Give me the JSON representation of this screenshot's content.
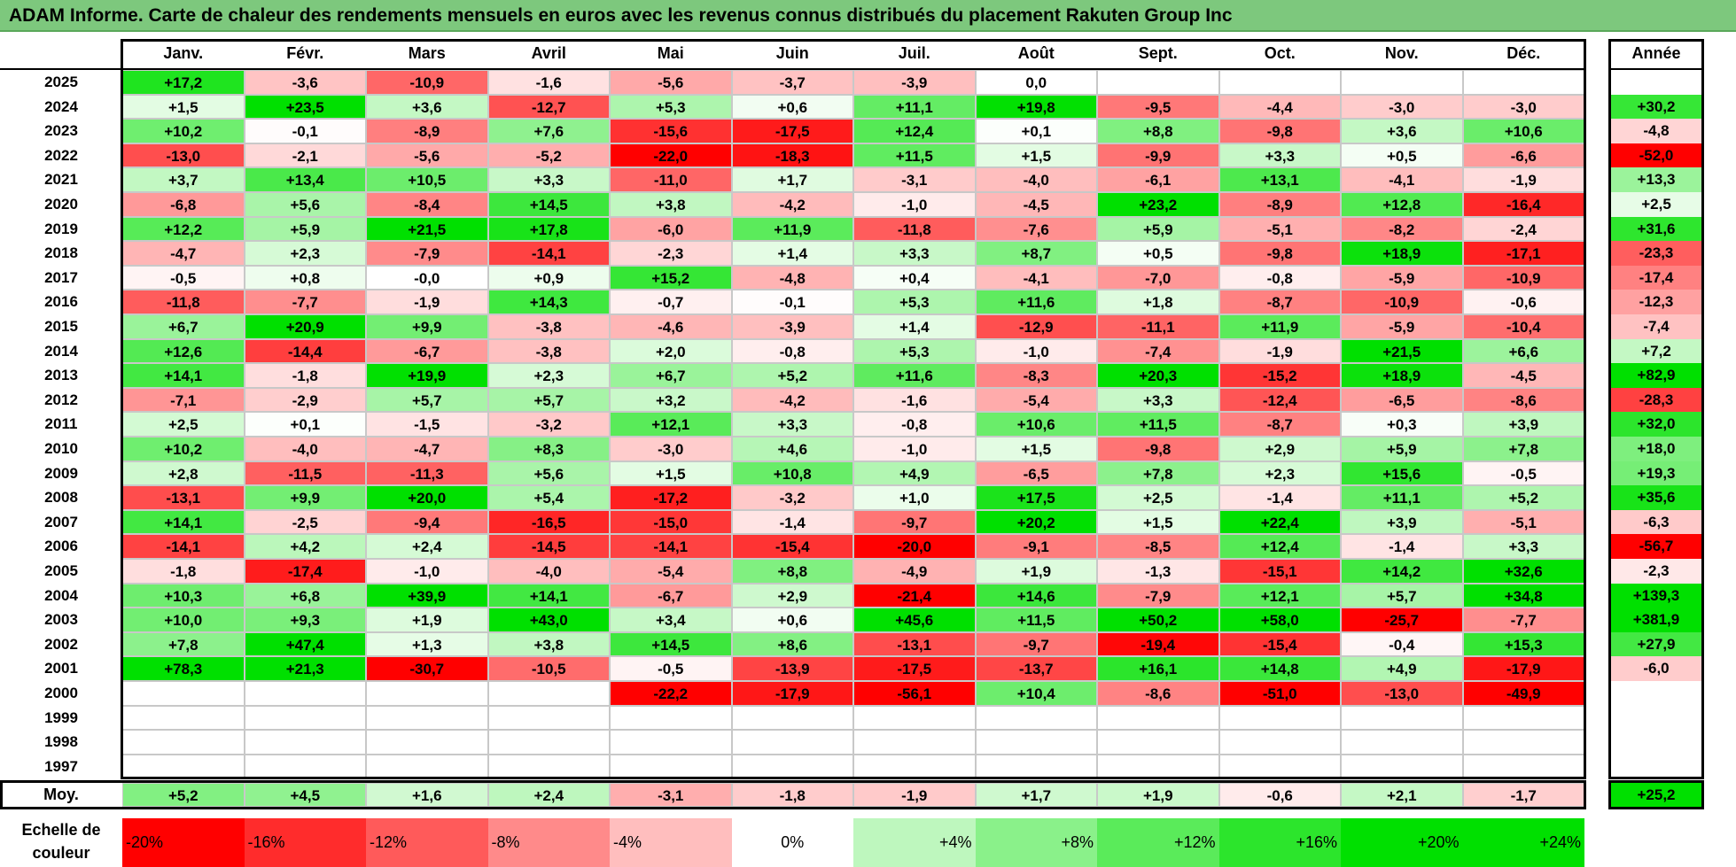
{
  "chart_data": {
    "type": "heatmap",
    "title": "ADAM Informe. Carte de chaleur des rendements mensuels en euros avec les revenus connus distribués du placement Rakuten Group Inc",
    "months": [
      "Janv.",
      "Févr.",
      "Mars",
      "Avril",
      "Mai",
      "Juin",
      "Juil.",
      "Août",
      "Sept.",
      "Oct.",
      "Nov.",
      "Déc."
    ],
    "year_column_label": "Année",
    "average_row_label": "Moy.",
    "rows": [
      {
        "year": "2025",
        "values": [
          "+17,2",
          "-3,6",
          "-10,9",
          "-1,6",
          "-5,6",
          "-3,7",
          "-3,9",
          "0,0",
          "",
          "",
          "",
          ""
        ],
        "annual": ""
      },
      {
        "year": "2024",
        "values": [
          "+1,5",
          "+23,5",
          "+3,6",
          "-12,7",
          "+5,3",
          "+0,6",
          "+11,1",
          "+19,8",
          "-9,5",
          "-4,4",
          "-3,0",
          "-3,0"
        ],
        "annual": "+30,2"
      },
      {
        "year": "2023",
        "values": [
          "+10,2",
          "-0,1",
          "-8,9",
          "+7,6",
          "-15,6",
          "-17,5",
          "+12,4",
          "+0,1",
          "+8,8",
          "-9,8",
          "+3,6",
          "+10,6"
        ],
        "annual": "-4,8"
      },
      {
        "year": "2022",
        "values": [
          "-13,0",
          "-2,1",
          "-5,6",
          "-5,2",
          "-22,0",
          "-18,3",
          "+11,5",
          "+1,5",
          "-9,9",
          "+3,3",
          "+0,5",
          "-6,6"
        ],
        "annual": "-52,0"
      },
      {
        "year": "2021",
        "values": [
          "+3,7",
          "+13,4",
          "+10,5",
          "+3,3",
          "-11,0",
          "+1,7",
          "-3,1",
          "-4,0",
          "-6,1",
          "+13,1",
          "-4,1",
          "-1,9"
        ],
        "annual": "+13,3"
      },
      {
        "year": "2020",
        "values": [
          "-6,8",
          "+5,6",
          "-8,4",
          "+14,5",
          "+3,8",
          "-4,2",
          "-1,0",
          "-4,5",
          "+23,2",
          "-8,9",
          "+12,8",
          "-16,4"
        ],
        "annual": "+2,5"
      },
      {
        "year": "2019",
        "values": [
          "+12,2",
          "+5,9",
          "+21,5",
          "+17,8",
          "-6,0",
          "+11,9",
          "-11,8",
          "-7,6",
          "+5,9",
          "-5,1",
          "-8,2",
          "-2,4"
        ],
        "annual": "+31,6"
      },
      {
        "year": "2018",
        "values": [
          "-4,7",
          "+2,3",
          "-7,9",
          "-14,1",
          "-2,3",
          "+1,4",
          "+3,3",
          "+8,7",
          "+0,5",
          "-9,8",
          "+18,9",
          "-17,1"
        ],
        "annual": "-23,3"
      },
      {
        "year": "2017",
        "values": [
          "-0,5",
          "+0,8",
          "-0,0",
          "+0,9",
          "+15,2",
          "-4,8",
          "+0,4",
          "-4,1",
          "-7,0",
          "-0,8",
          "-5,9",
          "-10,9"
        ],
        "annual": "-17,4"
      },
      {
        "year": "2016",
        "values": [
          "-11,8",
          "-7,7",
          "-1,9",
          "+14,3",
          "-0,7",
          "-0,1",
          "+5,3",
          "+11,6",
          "+1,8",
          "-8,7",
          "-10,9",
          "-0,6"
        ],
        "annual": "-12,3"
      },
      {
        "year": "2015",
        "values": [
          "+6,7",
          "+20,9",
          "+9,9",
          "-3,8",
          "-4,6",
          "-3,9",
          "+1,4",
          "-12,9",
          "-11,1",
          "+11,9",
          "-5,9",
          "-10,4"
        ],
        "annual": "-7,4"
      },
      {
        "year": "2014",
        "values": [
          "+12,6",
          "-14,4",
          "-6,7",
          "-3,8",
          "+2,0",
          "-0,8",
          "+5,3",
          "-1,0",
          "-7,4",
          "-1,9",
          "+21,5",
          "+6,6"
        ],
        "annual": "+7,2"
      },
      {
        "year": "2013",
        "values": [
          "+14,1",
          "-1,8",
          "+19,9",
          "+2,3",
          "+6,7",
          "+5,2",
          "+11,6",
          "-8,3",
          "+20,3",
          "-15,2",
          "+18,9",
          "-4,5"
        ],
        "annual": "+82,9"
      },
      {
        "year": "2012",
        "values": [
          "-7,1",
          "-2,9",
          "+5,7",
          "+5,7",
          "+3,2",
          "-4,2",
          "-1,6",
          "-5,4",
          "+3,3",
          "-12,4",
          "-6,5",
          "-8,6"
        ],
        "annual": "-28,3"
      },
      {
        "year": "2011",
        "values": [
          "+2,5",
          "+0,1",
          "-1,5",
          "-3,2",
          "+12,1",
          "+3,3",
          "-0,8",
          "+10,6",
          "+11,5",
          "-8,7",
          "+0,3",
          "+3,9"
        ],
        "annual": "+32,0"
      },
      {
        "year": "2010",
        "values": [
          "+10,2",
          "-4,0",
          "-4,7",
          "+8,3",
          "-3,0",
          "+4,6",
          "-1,0",
          "+1,5",
          "-9,8",
          "+2,9",
          "+5,9",
          "+7,8"
        ],
        "annual": "+18,0"
      },
      {
        "year": "2009",
        "values": [
          "+2,8",
          "-11,5",
          "-11,3",
          "+5,6",
          "+1,5",
          "+10,8",
          "+4,9",
          "-6,5",
          "+7,8",
          "+2,3",
          "+15,6",
          "-0,5"
        ],
        "annual": "+19,3"
      },
      {
        "year": "2008",
        "values": [
          "-13,1",
          "+9,9",
          "+20,0",
          "+5,4",
          "-17,2",
          "-3,2",
          "+1,0",
          "+17,5",
          "+2,5",
          "-1,4",
          "+11,1",
          "+5,2"
        ],
        "annual": "+35,6"
      },
      {
        "year": "2007",
        "values": [
          "+14,1",
          "-2,5",
          "-9,4",
          "-16,5",
          "-15,0",
          "-1,4",
          "-9,7",
          "+20,2",
          "+1,5",
          "+22,4",
          "+3,9",
          "-5,1"
        ],
        "annual": "-6,3"
      },
      {
        "year": "2006",
        "values": [
          "-14,1",
          "+4,2",
          "+2,4",
          "-14,5",
          "-14,1",
          "-15,4",
          "-20,0",
          "-9,1",
          "-8,5",
          "+12,4",
          "-1,4",
          "+3,3"
        ],
        "annual": "-56,7"
      },
      {
        "year": "2005",
        "values": [
          "-1,8",
          "-17,4",
          "-1,0",
          "-4,0",
          "-5,4",
          "+8,8",
          "-4,9",
          "+1,9",
          "-1,3",
          "-15,1",
          "+14,2",
          "+32,6"
        ],
        "annual": "-2,3"
      },
      {
        "year": "2004",
        "values": [
          "+10,3",
          "+6,8",
          "+39,9",
          "+14,1",
          "-6,7",
          "+2,9",
          "-21,4",
          "+14,6",
          "-7,9",
          "+12,1",
          "+5,7",
          "+34,8"
        ],
        "annual": "+139,3"
      },
      {
        "year": "2003",
        "values": [
          "+10,0",
          "+9,3",
          "+1,9",
          "+43,0",
          "+3,4",
          "+0,6",
          "+45,6",
          "+11,5",
          "+50,2",
          "+58,0",
          "-25,7",
          "-7,7"
        ],
        "annual": "+381,9"
      },
      {
        "year": "2002",
        "values": [
          "+7,8",
          "+47,4",
          "+1,3",
          "+3,8",
          "+14,5",
          "+8,6",
          "-13,1",
          "-9,7",
          "-19,4",
          "-15,4",
          "-0,4",
          "+15,3"
        ],
        "annual": "+27,9"
      },
      {
        "year": "2001",
        "values": [
          "+78,3",
          "+21,3",
          "-30,7",
          "-10,5",
          "-0,5",
          "-13,9",
          "-17,5",
          "-13,7",
          "+16,1",
          "+14,8",
          "+4,9",
          "-17,9"
        ],
        "annual": "-6,0"
      },
      {
        "year": "2000",
        "values": [
          "",
          "",
          "",
          "",
          "-22,2",
          "-17,9",
          "-56,1",
          "+10,4",
          "-8,6",
          "-51,0",
          "-13,0",
          "-49,9"
        ],
        "annual": ""
      },
      {
        "year": "1999",
        "values": [
          "",
          "",
          "",
          "",
          "",
          "",
          "",
          "",
          "",
          "",
          "",
          ""
        ],
        "annual": ""
      },
      {
        "year": "1998",
        "values": [
          "",
          "",
          "",
          "",
          "",
          "",
          "",
          "",
          "",
          "",
          "",
          ""
        ],
        "annual": ""
      },
      {
        "year": "1997",
        "values": [
          "",
          "",
          "",
          "",
          "",
          "",
          "",
          "",
          "",
          "",
          "",
          ""
        ],
        "annual": ""
      }
    ],
    "average": {
      "values": [
        "+5,2",
        "+4,5",
        "+1,6",
        "+2,4",
        "-3,1",
        "-1,8",
        "-1,9",
        "+1,7",
        "+1,9",
        "-0,6",
        "+2,1",
        "-1,7"
      ],
      "annual": "+25,2"
    },
    "color_scale": {
      "label": "Echelle de couleur",
      "stops": [
        "-20%",
        "-16%",
        "-12%",
        "-8%",
        "-4%",
        "0%",
        "+4%",
        "+8%",
        "+12%",
        "+16%",
        "+20%",
        "+24%"
      ],
      "negative_color": "#ff0000",
      "neutral_color": "#ffffff",
      "positive_color": "#00e000"
    },
    "colors": {
      "title_bar": "#7dc87d"
    }
  }
}
